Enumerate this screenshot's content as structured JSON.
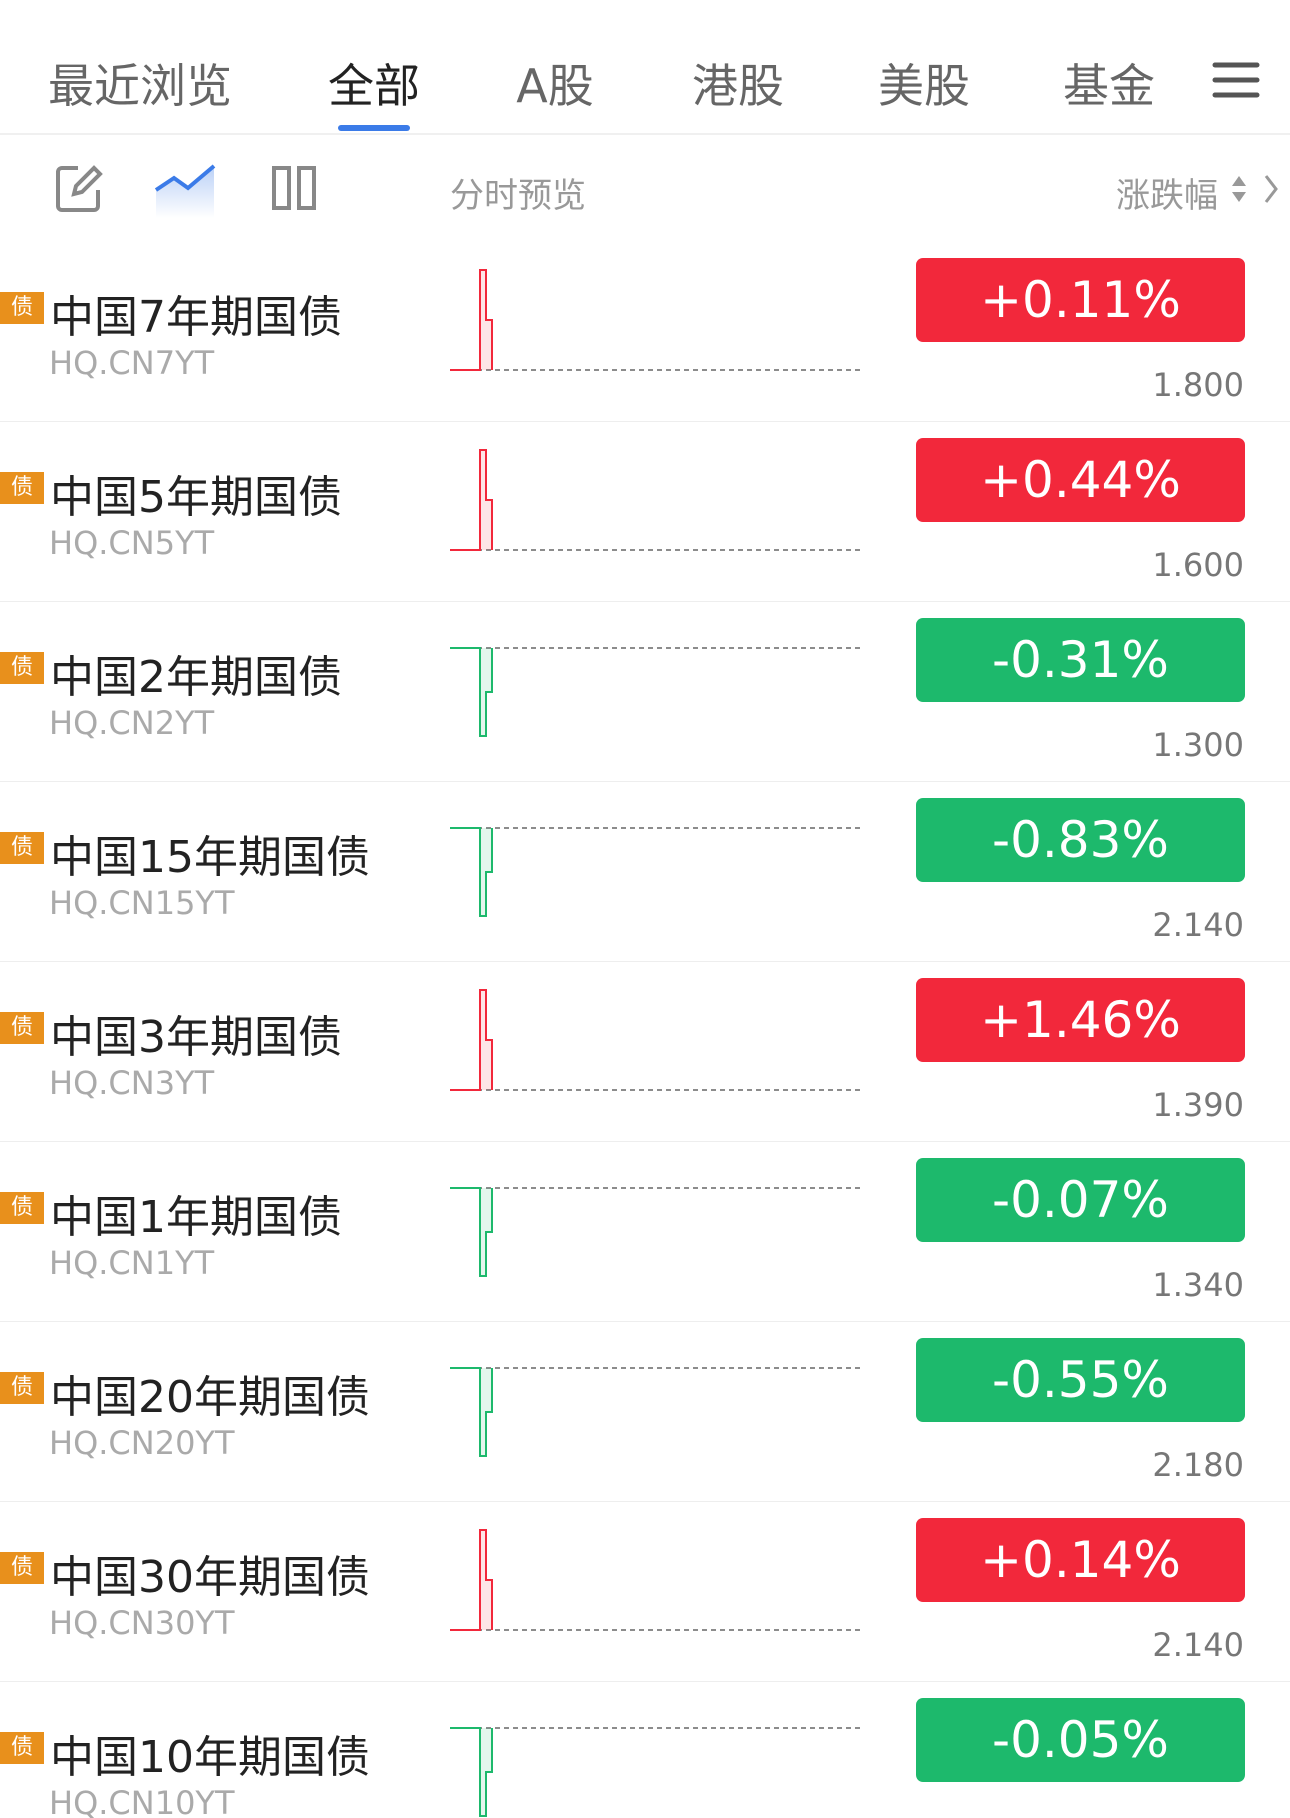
{
  "tabs": [
    "最近浏览",
    "全部",
    "A股",
    "港股",
    "美股",
    "基金"
  ],
  "active_tab": 1,
  "toolbar": {
    "preview_label": "分时预览",
    "sort_label": "涨跌幅"
  },
  "rows": [
    {
      "badge": "债",
      "name": "中国7年期国债",
      "code": "HQ.CN7YT",
      "change": "+0.11%",
      "price": "1.800",
      "color": "#f2283b"
    },
    {
      "badge": "债",
      "name": "中国5年期国债",
      "code": "HQ.CN5YT",
      "change": "+0.44%",
      "price": "1.600",
      "color": "#f2283b"
    },
    {
      "badge": "债",
      "name": "中国2年期国债",
      "code": "HQ.CN2YT",
      "change": "-0.31%",
      "price": "1.300",
      "color": "#1db96c"
    },
    {
      "badge": "债",
      "name": "中国15年期国债",
      "code": "HQ.CN15YT",
      "change": "-0.83%",
      "price": "2.140",
      "color": "#1db96c"
    },
    {
      "badge": "债",
      "name": "中国3年期国债",
      "code": "HQ.CN3YT",
      "change": "+1.46%",
      "price": "1.390",
      "color": "#f2283b"
    },
    {
      "badge": "债",
      "name": "中国1年期国债",
      "code": "HQ.CN1YT",
      "change": "-0.07%",
      "price": "1.340",
      "color": "#1db96c"
    },
    {
      "badge": "债",
      "name": "中国20年期国债",
      "code": "HQ.CN20YT",
      "change": "-0.55%",
      "price": "2.180",
      "color": "#1db96c"
    },
    {
      "badge": "债",
      "name": "中国30年期国债",
      "code": "HQ.CN30YT",
      "change": "+0.14%",
      "price": "2.140",
      "color": "#f2283b"
    },
    {
      "badge": "债",
      "name": "中国10年期国债",
      "code": "HQ.CN10YT",
      "change": "-0.05%",
      "color": "#1db96c"
    }
  ]
}
